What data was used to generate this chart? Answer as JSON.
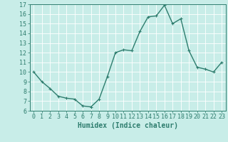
{
  "x": [
    0,
    1,
    2,
    3,
    4,
    5,
    6,
    7,
    8,
    9,
    10,
    11,
    12,
    13,
    14,
    15,
    16,
    17,
    18,
    19,
    20,
    21,
    22,
    23
  ],
  "y": [
    10.0,
    9.0,
    8.3,
    7.5,
    7.3,
    7.2,
    6.5,
    6.4,
    7.2,
    9.5,
    12.0,
    12.3,
    12.2,
    14.2,
    15.7,
    15.8,
    16.9,
    15.0,
    15.5,
    12.2,
    10.5,
    10.3,
    10.0,
    11.0
  ],
  "line_color": "#2e7d6e",
  "marker_color": "#2e7d6e",
  "bg_color": "#c8ede8",
  "grid_color": "#b0ddd8",
  "xlabel": "Humidex (Indice chaleur)",
  "xlim": [
    -0.5,
    23.5
  ],
  "ylim": [
    6,
    17
  ],
  "yticks": [
    6,
    7,
    8,
    9,
    10,
    11,
    12,
    13,
    14,
    15,
    16,
    17
  ],
  "xticks": [
    0,
    1,
    2,
    3,
    4,
    5,
    6,
    7,
    8,
    9,
    10,
    11,
    12,
    13,
    14,
    15,
    16,
    17,
    18,
    19,
    20,
    21,
    22,
    23
  ],
  "line_width": 1.0,
  "marker_size": 2.5,
  "xlabel_fontsize": 7,
  "tick_fontsize": 6
}
